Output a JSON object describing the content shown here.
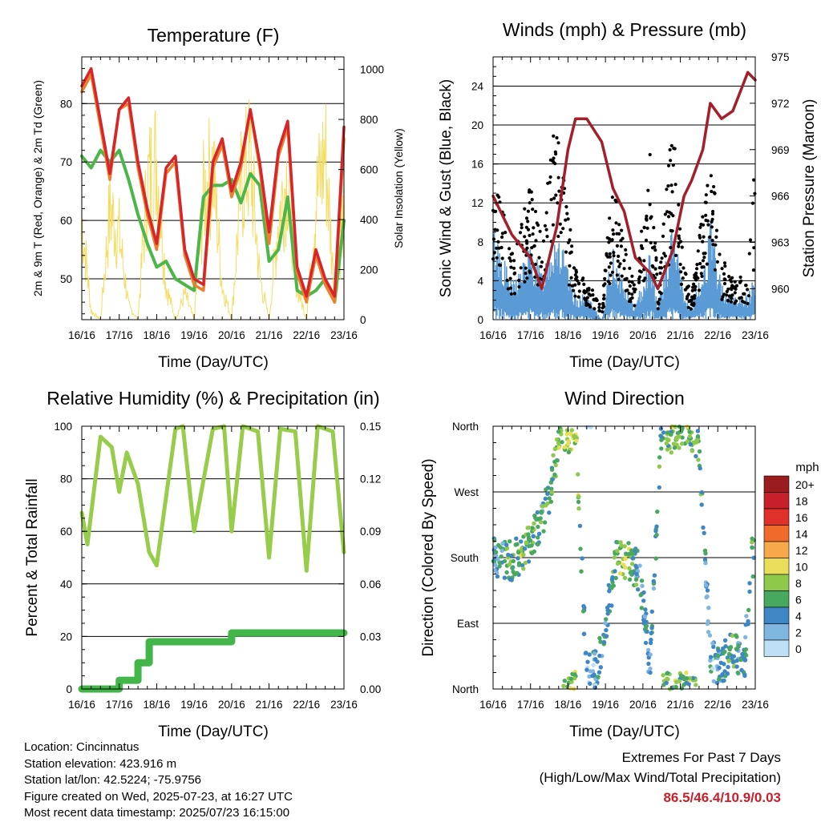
{
  "x_ticks": [
    "16/16",
    "17/16",
    "18/16",
    "19/16",
    "20/16",
    "21/16",
    "22/16",
    "23/16"
  ],
  "x_label": "Time (Day/UTC)",
  "colors": {
    "temp_2m": "#ee7f2d",
    "temp_9m": "#d7262b",
    "dewpoint": "#4cb648",
    "solar": "#f5dc62",
    "wind": "#5b9bd5",
    "gust": "#000000",
    "pressure": "#a3202a",
    "rh": "#97cd4b",
    "precip": "#43b649"
  },
  "panels": {
    "temperature": {
      "title": "Temperature (F)",
      "ylabel_left": "2m & 9m T (Red, Orange) & 2m Td (Green)",
      "ylabel_right": "Solar Insolation (Yellow)",
      "left_ticks": [
        "50",
        "60",
        "70",
        "80"
      ],
      "right_ticks": [
        "0",
        "200",
        "400",
        "600",
        "800",
        "1000"
      ]
    },
    "winds": {
      "title": "Winds (mph) & Pressure (mb)",
      "ylabel_left": "Sonic Wind & Gust (Blue, Black)",
      "ylabel_right": "Station Pressure (Maroon)",
      "left_ticks": [
        "0",
        "4",
        "8",
        "12",
        "16",
        "20",
        "24"
      ],
      "right_ticks": [
        "960",
        "963",
        "966",
        "969",
        "972",
        "975"
      ]
    },
    "humidity": {
      "title": "Relative Humidity (%) & Precipitation (in)",
      "ylabel_left": "Percent & Total Rainfall",
      "left_ticks": [
        "0",
        "20",
        "40",
        "60",
        "80",
        "100"
      ],
      "right_ticks": [
        "0.00",
        "0.03",
        "0.06",
        "0.09",
        "0.12",
        "0.15"
      ]
    },
    "direction": {
      "title": "Wind Direction",
      "ylabel_left": "Direction (Colored By Speed)",
      "dir_ticks": [
        "North",
        "East",
        "South",
        "West",
        "North"
      ],
      "legend_title": "mph",
      "legend_labels": [
        "20+",
        "18",
        "16",
        "14",
        "12",
        "10",
        "8",
        "6",
        "4",
        "2",
        "0"
      ],
      "legend_colors": [
        "#9b1c1f",
        "#c8202a",
        "#e0302a",
        "#f06a2c",
        "#f7a94a",
        "#e8de5a",
        "#8fc94c",
        "#48a860",
        "#3f87c4",
        "#7fb6e0",
        "#bfe0f4"
      ]
    }
  },
  "info_lines": [
    "Location: Cincinnatus",
    "Station elevation: 423.916 m",
    "Station lat/lon: 42.5224; -75.9756",
    "Figure created on Wed, 2025-07-23, at 16:27 UTC",
    "Most recent data timestamp: 2025/07/23 16:15:00"
  ],
  "extremes": {
    "title": "Extremes For Past 7 Days",
    "subtitle": "(High/Low/Max Wind/Total Precipitation)",
    "values": "86.5/46.4/10.9/0.03"
  },
  "chart_data": [
    {
      "type": "line",
      "title": "Temperature (F)",
      "xlabel": "Time (Day/UTC)",
      "x": [
        0,
        0.25,
        0.5,
        0.75,
        1,
        1.25,
        1.5,
        1.75,
        2,
        2.25,
        2.5,
        2.75,
        3,
        3.25,
        3.5,
        3.75,
        4,
        4.25,
        4.5,
        4.75,
        5,
        5.25,
        5.5,
        5.75,
        6,
        6.25,
        6.5,
        6.75,
        7
      ],
      "series": [
        {
          "name": "9m T",
          "axis": "left",
          "values": [
            83,
            86,
            77,
            68,
            79,
            81,
            70,
            62,
            56,
            69,
            71,
            55,
            50,
            49,
            70,
            74,
            65,
            70,
            79,
            70,
            58,
            72,
            77,
            52,
            47,
            55,
            50,
            47,
            76
          ]
        },
        {
          "name": "2m T",
          "axis": "left",
          "values": [
            82,
            85,
            76,
            67,
            79,
            80,
            69,
            61,
            55,
            68,
            70,
            54,
            49,
            48,
            69,
            73,
            64,
            69,
            79,
            69,
            56,
            71,
            76,
            51,
            46,
            54,
            49,
            46,
            74
          ]
        },
        {
          "name": "2m Td",
          "axis": "left",
          "values": [
            71,
            69,
            72,
            70,
            72,
            67,
            61,
            56,
            52,
            53,
            50,
            49,
            48,
            64,
            66,
            66,
            67,
            63,
            68,
            66,
            53,
            55,
            64,
            48,
            47,
            48,
            50,
            46,
            60
          ]
        },
        {
          "name": "Solar Insolation",
          "axis": "right",
          "values": [
            600,
            50,
            0,
            650,
            500,
            80,
            0,
            800,
            950,
            200,
            0,
            150,
            0,
            720,
            900,
            200,
            0,
            780,
            950,
            250,
            0,
            600,
            880,
            200,
            0,
            700,
            1000,
            150,
            650
          ]
        }
      ],
      "ylim": [
        43,
        88
      ],
      "ylim_right": [
        0,
        1050
      ]
    },
    {
      "type": "scatter",
      "title": "Winds (mph) & Pressure (mb)",
      "xlabel": "Time (Day/UTC)",
      "x": [
        0,
        0.5,
        1,
        1.3,
        1.7,
        2,
        2.2,
        2.5,
        2.9,
        3.2,
        3.5,
        3.8,
        4.2,
        4.4,
        4.8,
        5.1,
        5.3,
        5.6,
        5.8,
        6.1,
        6.4,
        6.8,
        7
      ],
      "series": [
        {
          "name": "Pressure",
          "axis": "right",
          "type": "line",
          "values": [
            966,
            963.5,
            962,
            960,
            964,
            969,
            971,
            971,
            969.5,
            966.5,
            965,
            962,
            961,
            960,
            962.5,
            966,
            967,
            969,
            972,
            971,
            971.5,
            974,
            973.5
          ]
        },
        {
          "name": "Sonic Wind",
          "axis": "left",
          "type": "scatter",
          "values": [
            8,
            3,
            6,
            4,
            8,
            4,
            2,
            2,
            0,
            6,
            3,
            1,
            6,
            1,
            8,
            2,
            1,
            4,
            8,
            3,
            2,
            2,
            4
          ]
        },
        {
          "name": "Gust",
          "axis": "left",
          "type": "scatter",
          "values": [
            15,
            6,
            13,
            8,
            20,
            10,
            5,
            4,
            1,
            14,
            7,
            3,
            16,
            3,
            19,
            5,
            2,
            11,
            16,
            6,
            4,
            4,
            16
          ]
        }
      ],
      "ylim": [
        0,
        27
      ],
      "ylim_right": [
        958,
        975
      ]
    },
    {
      "type": "line",
      "title": "Relative Humidity (%) & Precipitation (in)",
      "ylabel": "Percent & Total Rainfall",
      "xlabel": "Time (Day/UTC)",
      "x": [
        0,
        0.15,
        0.5,
        0.8,
        1,
        1.2,
        1.5,
        1.8,
        2,
        2.5,
        2.7,
        3,
        3.5,
        3.8,
        4,
        4.3,
        4.7,
        5,
        5.3,
        5.7,
        6,
        6.3,
        6.7,
        7
      ],
      "series": [
        {
          "name": "Relative Humidity",
          "axis": "left",
          "values": [
            67,
            55,
            96,
            92,
            75,
            90,
            78,
            52,
            47,
            99,
            100,
            60,
            99,
            100,
            60,
            100,
            98,
            50,
            99,
            98,
            45,
            100,
            98,
            52
          ]
        },
        {
          "name": "Total Precipitation",
          "axis": "right",
          "values": [
            0,
            0,
            0,
            0,
            0.005,
            0.005,
            0.015,
            0.027,
            0.027,
            0.027,
            0.027,
            0.027,
            0.027,
            0.027,
            0.032,
            0.032,
            0.032,
            0.032,
            0.032,
            0.032,
            0.032,
            0.032,
            0.032,
            0.032
          ]
        }
      ],
      "ylim": [
        0,
        100
      ],
      "ylim_right": [
        0,
        0.15
      ]
    },
    {
      "type": "scatter",
      "title": "Wind Direction",
      "ylabel": "Direction (Colored By Speed)",
      "xlabel": "Time (Day/UTC)",
      "x": [
        0.1,
        0.5,
        0.8,
        1.3,
        1.5,
        1.8,
        2,
        2.2,
        2.5,
        2.8,
        3.3,
        3.6,
        3.9,
        4.2,
        4.5,
        4.8,
        5.2,
        5.5,
        5.8,
        6.1,
        6.4,
        6.7,
        6.9
      ],
      "series": [
        {
          "name": "Direction (deg)",
          "values": [
            180,
            175,
            185,
            230,
            270,
            340,
            350,
            360,
            20,
            30,
            180,
            175,
            160,
            30,
            360,
            350,
            360,
            340,
            40,
            30,
            60,
            30,
            180
          ]
        },
        {
          "name": "Speed (mph)",
          "values": [
            4,
            6,
            7,
            5,
            6,
            7,
            8,
            8,
            3,
            3,
            7,
            8,
            4,
            3,
            6,
            7,
            7,
            6,
            3,
            4,
            6,
            3,
            5
          ]
        }
      ],
      "ylim": [
        "North",
        "North"
      ]
    }
  ]
}
